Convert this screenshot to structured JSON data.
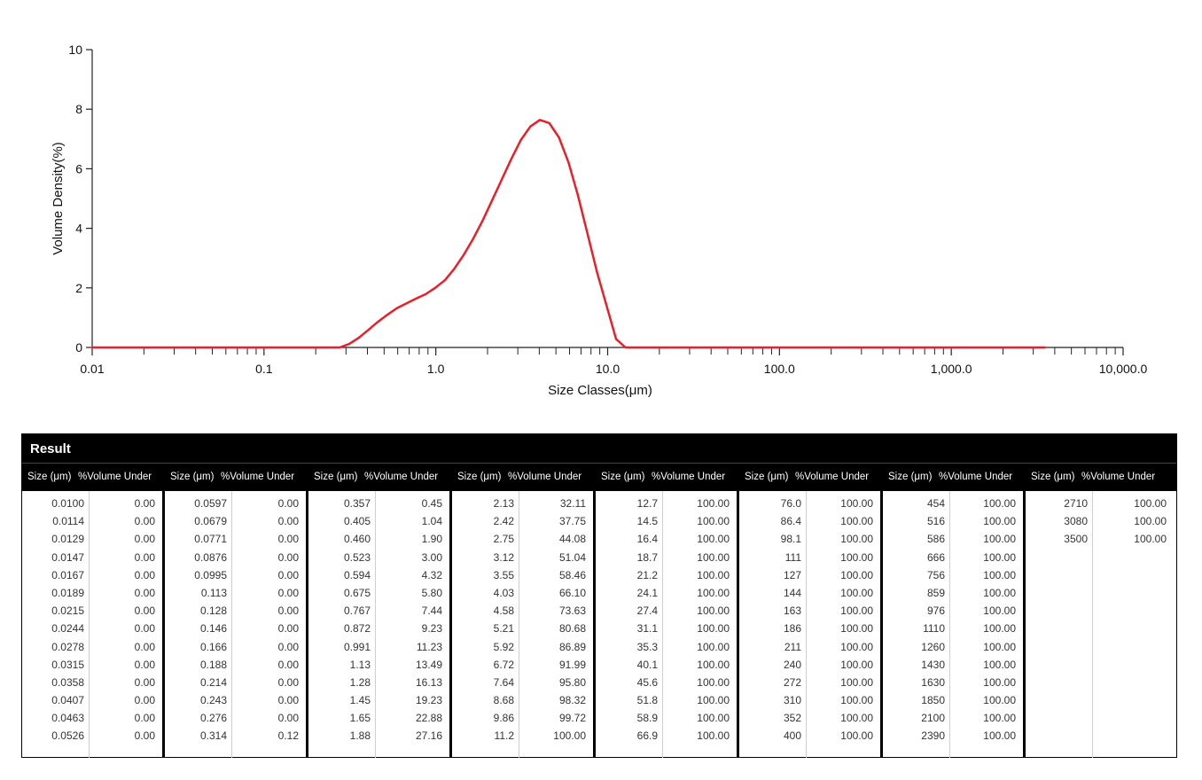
{
  "chart_data": {
    "type": "line",
    "ylabel": "Volume Density(%)",
    "xlabel": "Size Classes(μm)",
    "x_scale": "log",
    "xlim": [
      0.01,
      10000
    ],
    "ylim": [
      0,
      10
    ],
    "x_ticks": [
      "0.01",
      "0.1",
      "1.0",
      "10.0",
      "100.0",
      "1,000.0",
      "10,000.0"
    ],
    "x_tick_values": [
      0.01,
      0.1,
      1,
      10,
      100,
      1000,
      10000
    ],
    "y_ticks": [
      "0",
      "2",
      "4",
      "6",
      "8",
      "10"
    ],
    "y_tick_values": [
      0,
      2,
      4,
      6,
      8,
      10
    ],
    "line_color": "#e8202a",
    "series": [
      {
        "x": [
          0.01,
          0.0114,
          0.0129,
          0.0147,
          0.0167,
          0.0189,
          0.0215,
          0.0244,
          0.0278,
          0.0315,
          0.0358,
          0.0407,
          0.0463,
          0.0526,
          0.0597,
          0.0679,
          0.0771,
          0.0876,
          0.0995,
          0.113,
          0.128,
          0.146,
          0.166,
          0.188,
          0.214,
          0.243,
          0.276,
          0.314,
          0.357,
          0.405,
          0.46,
          0.523,
          0.594,
          0.675,
          0.767,
          0.872,
          0.991,
          1.13,
          1.28,
          1.45,
          1.65,
          1.88,
          2.13,
          2.42,
          2.75,
          3.12,
          3.55,
          4.03,
          4.58,
          5.21,
          5.92,
          6.72,
          7.64,
          8.68,
          9.86,
          11.2,
          12.7,
          14.5,
          16.4,
          18.7,
          21.2,
          24.1,
          27.4,
          31.1,
          35.3,
          40.1,
          45.6,
          51.8,
          58.9,
          66.9,
          76.0,
          86.4,
          98.1,
          111,
          127,
          144,
          163,
          186,
          211,
          240,
          272,
          310,
          352,
          400,
          454,
          516,
          586,
          666,
          756,
          859,
          976,
          1110,
          1260,
          1430,
          1630,
          1850,
          2100,
          2390,
          2710,
          3080,
          3500
        ],
        "y": [
          0,
          0,
          0,
          0,
          0,
          0,
          0,
          0,
          0,
          0,
          0,
          0,
          0,
          0,
          0,
          0,
          0,
          0,
          0,
          0,
          0,
          0,
          0,
          0,
          0,
          0,
          0,
          0.12,
          0.33,
          0.59,
          0.86,
          1.1,
          1.32,
          1.48,
          1.64,
          1.79,
          2.0,
          2.26,
          2.64,
          3.1,
          3.65,
          4.28,
          4.95,
          5.64,
          6.33,
          6.96,
          7.42,
          7.64,
          7.53,
          7.05,
          6.21,
          5.1,
          3.81,
          2.52,
          1.4,
          0.28,
          0,
          0,
          0,
          0,
          0,
          0,
          0,
          0,
          0,
          0,
          0,
          0,
          0,
          0,
          0,
          0,
          0,
          0,
          0,
          0,
          0,
          0,
          0,
          0,
          0,
          0,
          0,
          0,
          0,
          0,
          0,
          0,
          0,
          0,
          0,
          0,
          0,
          0,
          0,
          0,
          0,
          0,
          0,
          0,
          0
        ]
      }
    ]
  },
  "results": {
    "title": "Result",
    "header_size": "Size (μm)",
    "header_volume": "%Volume Under",
    "groups": [
      {
        "rows": [
          [
            "0.0100",
            "0.00"
          ],
          [
            "0.0114",
            "0.00"
          ],
          [
            "0.0129",
            "0.00"
          ],
          [
            "0.0147",
            "0.00"
          ],
          [
            "0.0167",
            "0.00"
          ],
          [
            "0.0189",
            "0.00"
          ],
          [
            "0.0215",
            "0.00"
          ],
          [
            "0.0244",
            "0.00"
          ],
          [
            "0.0278",
            "0.00"
          ],
          [
            "0.0315",
            "0.00"
          ],
          [
            "0.0358",
            "0.00"
          ],
          [
            "0.0407",
            "0.00"
          ],
          [
            "0.0463",
            "0.00"
          ],
          [
            "0.0526",
            "0.00"
          ]
        ]
      },
      {
        "rows": [
          [
            "0.0597",
            "0.00"
          ],
          [
            "0.0679",
            "0.00"
          ],
          [
            "0.0771",
            "0.00"
          ],
          [
            "0.0876",
            "0.00"
          ],
          [
            "0.0995",
            "0.00"
          ],
          [
            "0.113",
            "0.00"
          ],
          [
            "0.128",
            "0.00"
          ],
          [
            "0.146",
            "0.00"
          ],
          [
            "0.166",
            "0.00"
          ],
          [
            "0.188",
            "0.00"
          ],
          [
            "0.214",
            "0.00"
          ],
          [
            "0.243",
            "0.00"
          ],
          [
            "0.276",
            "0.00"
          ],
          [
            "0.314",
            "0.12"
          ]
        ]
      },
      {
        "rows": [
          [
            "0.357",
            "0.45"
          ],
          [
            "0.405",
            "1.04"
          ],
          [
            "0.460",
            "1.90"
          ],
          [
            "0.523",
            "3.00"
          ],
          [
            "0.594",
            "4.32"
          ],
          [
            "0.675",
            "5.80"
          ],
          [
            "0.767",
            "7.44"
          ],
          [
            "0.872",
            "9.23"
          ],
          [
            "0.991",
            "11.23"
          ],
          [
            "1.13",
            "13.49"
          ],
          [
            "1.28",
            "16.13"
          ],
          [
            "1.45",
            "19.23"
          ],
          [
            "1.65",
            "22.88"
          ],
          [
            "1.88",
            "27.16"
          ]
        ]
      },
      {
        "rows": [
          [
            "2.13",
            "32.11"
          ],
          [
            "2.42",
            "37.75"
          ],
          [
            "2.75",
            "44.08"
          ],
          [
            "3.12",
            "51.04"
          ],
          [
            "3.55",
            "58.46"
          ],
          [
            "4.03",
            "66.10"
          ],
          [
            "4.58",
            "73.63"
          ],
          [
            "5.21",
            "80.68"
          ],
          [
            "5.92",
            "86.89"
          ],
          [
            "6.72",
            "91.99"
          ],
          [
            "7.64",
            "95.80"
          ],
          [
            "8.68",
            "98.32"
          ],
          [
            "9.86",
            "99.72"
          ],
          [
            "11.2",
            "100.00"
          ]
        ]
      },
      {
        "rows": [
          [
            "12.7",
            "100.00"
          ],
          [
            "14.5",
            "100.00"
          ],
          [
            "16.4",
            "100.00"
          ],
          [
            "18.7",
            "100.00"
          ],
          [
            "21.2",
            "100.00"
          ],
          [
            "24.1",
            "100.00"
          ],
          [
            "27.4",
            "100.00"
          ],
          [
            "31.1",
            "100.00"
          ],
          [
            "35.3",
            "100.00"
          ],
          [
            "40.1",
            "100.00"
          ],
          [
            "45.6",
            "100.00"
          ],
          [
            "51.8",
            "100.00"
          ],
          [
            "58.9",
            "100.00"
          ],
          [
            "66.9",
            "100.00"
          ]
        ]
      },
      {
        "rows": [
          [
            "76.0",
            "100.00"
          ],
          [
            "86.4",
            "100.00"
          ],
          [
            "98.1",
            "100.00"
          ],
          [
            "111",
            "100.00"
          ],
          [
            "127",
            "100.00"
          ],
          [
            "144",
            "100.00"
          ],
          [
            "163",
            "100.00"
          ],
          [
            "186",
            "100.00"
          ],
          [
            "211",
            "100.00"
          ],
          [
            "240",
            "100.00"
          ],
          [
            "272",
            "100.00"
          ],
          [
            "310",
            "100.00"
          ],
          [
            "352",
            "100.00"
          ],
          [
            "400",
            "100.00"
          ]
        ]
      },
      {
        "rows": [
          [
            "454",
            "100.00"
          ],
          [
            "516",
            "100.00"
          ],
          [
            "586",
            "100.00"
          ],
          [
            "666",
            "100.00"
          ],
          [
            "756",
            "100.00"
          ],
          [
            "859",
            "100.00"
          ],
          [
            "976",
            "100.00"
          ],
          [
            "1110",
            "100.00"
          ],
          [
            "1260",
            "100.00"
          ],
          [
            "1430",
            "100.00"
          ],
          [
            "1630",
            "100.00"
          ],
          [
            "1850",
            "100.00"
          ],
          [
            "2100",
            "100.00"
          ],
          [
            "2390",
            "100.00"
          ]
        ]
      },
      {
        "rows": [
          [
            "2710",
            "100.00"
          ],
          [
            "3080",
            "100.00"
          ],
          [
            "3500",
            "100.00"
          ]
        ]
      }
    ]
  }
}
